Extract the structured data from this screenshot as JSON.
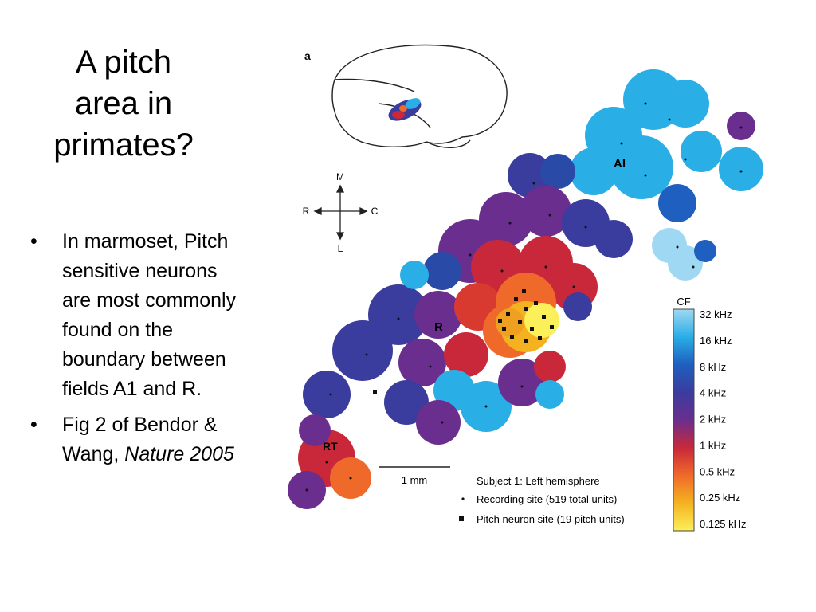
{
  "slide": {
    "title": "A pitch\narea in\nprimates?",
    "bullets": [
      {
        "text": "In marmoset, Pitch sensitive neurons are most commonly found on the boundary between fields A1 and R."
      },
      {
        "text_before": "Fig 2 of Bendor & Wang, ",
        "text_italic": "Nature 2005"
      }
    ],
    "bullet_glyph": "•"
  },
  "figure": {
    "panel_label": "a",
    "region_labels": {
      "a1": "AI",
      "r": "R",
      "rt": "RT"
    },
    "orientation": {
      "medial": "M",
      "lateral": "L",
      "rostral": "R",
      "caudal": "C"
    },
    "scale_bar_label": "1 mm",
    "legend": {
      "title": "Subject 1: Left hemisphere",
      "recording_site": "Recording site (519 total units)",
      "pitch_site": "Pitch neuron site (19 pitch units)"
    },
    "colorbar": {
      "title": "CF",
      "ticks": [
        "32 kHz",
        "16 kHz",
        "8 kHz",
        "4 kHz",
        "2 kHz",
        "1 kHz",
        "0.5 kHz",
        "0.25 kHz",
        "0.125 kHz"
      ],
      "colors": [
        "#9fd8f2",
        "#2aaee6",
        "#1f5fbf",
        "#3a3c9e",
        "#6a2e8e",
        "#c8283a",
        "#ef6a2a",
        "#f4b220",
        "#fbf05a"
      ]
    }
  }
}
